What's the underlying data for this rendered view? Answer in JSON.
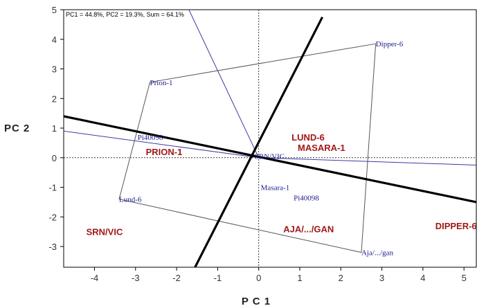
{
  "chart_data": {
    "type": "scatter",
    "title": "",
    "subtitle": "PC1 = 44.8%, PC2 = 19.3%, Sum = 64.1%",
    "xlabel": "P C 1",
    "ylabel": "PC 2",
    "xlim": [
      -4.75,
      5.3
    ],
    "ylim": [
      -3.7,
      5.0
    ],
    "xticks": [
      -4,
      -3,
      -2,
      -1,
      0,
      1,
      2,
      3,
      4,
      5
    ],
    "yticks": [
      5,
      4,
      3,
      2,
      1,
      0,
      -1,
      -2,
      -3
    ],
    "grid": false,
    "origin_lines": "dashed",
    "genotypes": [
      {
        "name": "Dipper-6",
        "x": 2.85,
        "y": 3.85
      },
      {
        "name": "Prion-1",
        "x": -2.65,
        "y": 2.55
      },
      {
        "name": "Pi40098",
        "x": -2.95,
        "y": 0.7
      },
      {
        "name": "SRN/VIC",
        "x": -0.1,
        "y": 0.05
      },
      {
        "name": "Lund-6",
        "x": -3.4,
        "y": -1.4
      },
      {
        "name": "Masara-1",
        "x": 0.05,
        "y": -1.0
      },
      {
        "name": "Pi40098",
        "x": 0.85,
        "y": -1.35
      },
      {
        "name": "Aja/.../gan",
        "x": 2.5,
        "y": -3.2
      }
    ],
    "environments": [
      {
        "name": "LUND-6",
        "x": 0.8,
        "y": 0.7
      },
      {
        "name": "MASARA-1",
        "x": 0.95,
        "y": 0.35
      },
      {
        "name": "PRION-1",
        "x": -2.75,
        "y": 0.2
      },
      {
        "name": "SRN/VIC",
        "x": -4.2,
        "y": -2.5
      },
      {
        "name": "AJA/.../GAN",
        "x": 0.6,
        "y": -2.4
      },
      {
        "name": "DIPPER-6",
        "x": 4.3,
        "y": -2.3
      }
    ],
    "polygon_vertices": [
      "Dipper-6",
      "Aja/.../gan",
      "Lund-6",
      "Prion-1"
    ],
    "rays": [
      {
        "x": -1.7,
        "y": 5.0
      },
      {
        "x": -4.75,
        "y": 0.9
      },
      {
        "x": 5.3,
        "y": -0.25
      }
    ],
    "sector_lines": [
      {
        "from": [
          -1.55,
          -3.7
        ],
        "to": [
          1.55,
          4.75
        ]
      },
      {
        "from": [
          -4.75,
          1.4
        ],
        "to": [
          5.3,
          -1.5
        ]
      }
    ]
  }
}
